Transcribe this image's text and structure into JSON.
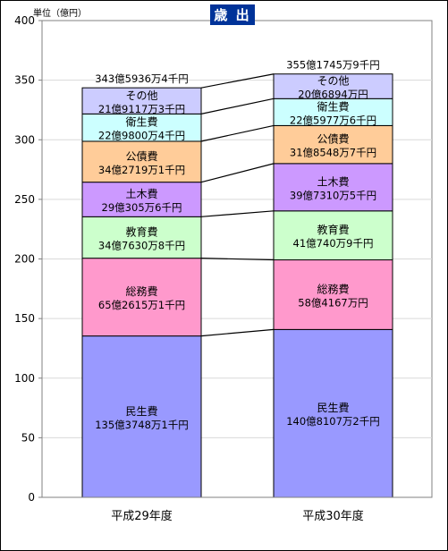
{
  "chart_data": {
    "type": "bar",
    "stacked": true,
    "title": "歳 出",
    "unit_label": "単位（億円）",
    "grid": true,
    "ylim": [
      0,
      400
    ],
    "yticks": [
      0,
      50,
      100,
      150,
      200,
      250,
      300,
      350,
      400
    ],
    "categories": [
      "平成29年度",
      "平成30年度"
    ],
    "series": [
      {
        "name": "民生費",
        "color": "#9999ff",
        "values": [
          135.3748,
          140.8107
        ],
        "labels": [
          "135億3748万1千円",
          "140億8107万2千円"
        ]
      },
      {
        "name": "総務費",
        "color": "#ff99cc",
        "values": [
          65.2615,
          58.4167
        ],
        "labels": [
          "65億2615万1千円",
          "58億4167万円"
        ]
      },
      {
        "name": "教育費",
        "color": "#ccffcc",
        "values": [
          34.763,
          41.074
        ],
        "labels": [
          "34億7630万8千円",
          "41億740万9千円"
        ]
      },
      {
        "name": "土木費",
        "color": "#cc99ff",
        "values": [
          29.0305,
          39.731
        ],
        "labels": [
          "29億305万6千円",
          "39億7310万5千円"
        ]
      },
      {
        "name": "公債費",
        "color": "#ffcc99",
        "values": [
          34.2719,
          31.8548
        ],
        "labels": [
          "34億2719万1千円",
          "31億8548万7千円"
        ]
      },
      {
        "name": "衛生費",
        "color": "#ccffff",
        "values": [
          22.98,
          22.5977
        ],
        "labels": [
          "22億9800万4千円",
          "22億5977万6千円"
        ]
      },
      {
        "name": "その他",
        "color": "#ccccff",
        "values": [
          21.9117,
          20.6894
        ],
        "labels": [
          "21億9117万3千円",
          "20億6894万円"
        ]
      }
    ],
    "totals": [
      343.5936,
      355.1745
    ],
    "total_labels": [
      "343億5936万4千円",
      "355億1745万9千円"
    ]
  }
}
